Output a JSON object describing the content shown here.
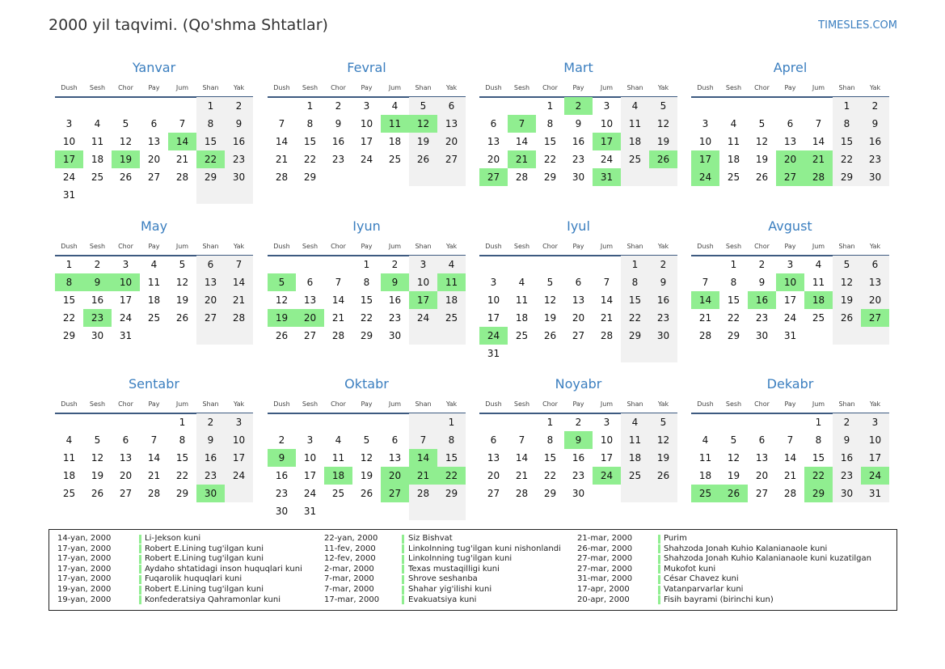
{
  "header": {
    "title": "2000 yil taqvimi. (Qo'shma Shtatlar)",
    "site": "TIMESLES.COM"
  },
  "weekdays": [
    "Dush",
    "Sesh",
    "Chor",
    "Pay",
    "Jum",
    "Shan",
    "Yak"
  ],
  "months": [
    {
      "name": "Yanvar",
      "weeks": [
        [
          null,
          null,
          null,
          null,
          null,
          1,
          2
        ],
        [
          3,
          4,
          5,
          6,
          7,
          8,
          9
        ],
        [
          10,
          11,
          12,
          13,
          14,
          15,
          16
        ],
        [
          17,
          18,
          19,
          20,
          21,
          22,
          23
        ],
        [
          24,
          25,
          26,
          27,
          28,
          29,
          30
        ],
        [
          31
        ]
      ],
      "holidays": [
        14,
        17,
        19,
        22
      ]
    },
    {
      "name": "Fevral",
      "weeks": [
        [
          null,
          1,
          2,
          3,
          4,
          5,
          6
        ],
        [
          7,
          8,
          9,
          10,
          11,
          12,
          13
        ],
        [
          14,
          15,
          16,
          17,
          18,
          19,
          20
        ],
        [
          21,
          22,
          23,
          24,
          25,
          26,
          27
        ],
        [
          28,
          29
        ]
      ],
      "holidays": [
        11,
        12
      ]
    },
    {
      "name": "Mart",
      "weeks": [
        [
          null,
          null,
          1,
          2,
          3,
          4,
          5
        ],
        [
          6,
          7,
          8,
          9,
          10,
          11,
          12
        ],
        [
          13,
          14,
          15,
          16,
          17,
          18,
          19
        ],
        [
          20,
          21,
          22,
          23,
          24,
          25,
          26
        ],
        [
          27,
          28,
          29,
          30,
          31
        ]
      ],
      "holidays": [
        2,
        7,
        17,
        21,
        26,
        27,
        31
      ]
    },
    {
      "name": "Aprel",
      "weeks": [
        [
          null,
          null,
          null,
          null,
          null,
          1,
          2
        ],
        [
          3,
          4,
          5,
          6,
          7,
          8,
          9
        ],
        [
          10,
          11,
          12,
          13,
          14,
          15,
          16
        ],
        [
          17,
          18,
          19,
          20,
          21,
          22,
          23
        ],
        [
          24,
          25,
          26,
          27,
          28,
          29,
          30
        ]
      ],
      "holidays": [
        17,
        20,
        21,
        24,
        27,
        28
      ]
    },
    {
      "name": "May",
      "weeks": [
        [
          1,
          2,
          3,
          4,
          5,
          6,
          7
        ],
        [
          8,
          9,
          10,
          11,
          12,
          13,
          14
        ],
        [
          15,
          16,
          17,
          18,
          19,
          20,
          21
        ],
        [
          22,
          23,
          24,
          25,
          26,
          27,
          28
        ],
        [
          29,
          30,
          31
        ]
      ],
      "holidays": [
        8,
        9,
        10,
        23
      ]
    },
    {
      "name": "Iyun",
      "weeks": [
        [
          null,
          null,
          null,
          1,
          2,
          3,
          4
        ],
        [
          5,
          6,
          7,
          8,
          9,
          10,
          11
        ],
        [
          12,
          13,
          14,
          15,
          16,
          17,
          18
        ],
        [
          19,
          20,
          21,
          22,
          23,
          24,
          25
        ],
        [
          26,
          27,
          28,
          29,
          30
        ]
      ],
      "holidays": [
        5,
        9,
        11,
        17,
        19,
        20
      ]
    },
    {
      "name": "Iyul",
      "weeks": [
        [
          null,
          null,
          null,
          null,
          null,
          1,
          2
        ],
        [
          3,
          4,
          5,
          6,
          7,
          8,
          9
        ],
        [
          10,
          11,
          12,
          13,
          14,
          15,
          16
        ],
        [
          17,
          18,
          19,
          20,
          21,
          22,
          23
        ],
        [
          24,
          25,
          26,
          27,
          28,
          29,
          30
        ],
        [
          31
        ]
      ],
      "holidays": [
        24
      ]
    },
    {
      "name": "Avgust",
      "weeks": [
        [
          null,
          1,
          2,
          3,
          4,
          5,
          6
        ],
        [
          7,
          8,
          9,
          10,
          11,
          12,
          13
        ],
        [
          14,
          15,
          16,
          17,
          18,
          19,
          20
        ],
        [
          21,
          22,
          23,
          24,
          25,
          26,
          27
        ],
        [
          28,
          29,
          30,
          31
        ]
      ],
      "holidays": [
        10,
        14,
        16,
        18,
        27
      ]
    },
    {
      "name": "Sentabr",
      "weeks": [
        [
          null,
          null,
          null,
          null,
          1,
          2,
          3
        ],
        [
          4,
          5,
          6,
          7,
          8,
          9,
          10
        ],
        [
          11,
          12,
          13,
          14,
          15,
          16,
          17
        ],
        [
          18,
          19,
          20,
          21,
          22,
          23,
          24
        ],
        [
          25,
          26,
          27,
          28,
          29,
          30
        ]
      ],
      "holidays": [
        30
      ]
    },
    {
      "name": "Oktabr",
      "weeks": [
        [
          null,
          null,
          null,
          null,
          null,
          null,
          1
        ],
        [
          2,
          3,
          4,
          5,
          6,
          7,
          8
        ],
        [
          9,
          10,
          11,
          12,
          13,
          14,
          15
        ],
        [
          16,
          17,
          18,
          19,
          20,
          21,
          22
        ],
        [
          23,
          24,
          25,
          26,
          27,
          28,
          29
        ],
        [
          30,
          31
        ]
      ],
      "holidays": [
        9,
        14,
        18,
        20,
        21,
        22,
        27
      ]
    },
    {
      "name": "Noyabr",
      "weeks": [
        [
          null,
          null,
          1,
          2,
          3,
          4,
          5
        ],
        [
          6,
          7,
          8,
          9,
          10,
          11,
          12
        ],
        [
          13,
          14,
          15,
          16,
          17,
          18,
          19
        ],
        [
          20,
          21,
          22,
          23,
          24,
          25,
          26
        ],
        [
          27,
          28,
          29,
          30
        ]
      ],
      "holidays": [
        9,
        24
      ]
    },
    {
      "name": "Dekabr",
      "weeks": [
        [
          null,
          null,
          null,
          null,
          1,
          2,
          3
        ],
        [
          4,
          5,
          6,
          7,
          8,
          9,
          10
        ],
        [
          11,
          12,
          13,
          14,
          15,
          16,
          17
        ],
        [
          18,
          19,
          20,
          21,
          22,
          23,
          24
        ],
        [
          25,
          26,
          27,
          28,
          29,
          30,
          31
        ]
      ],
      "holidays": [
        22,
        24,
        25,
        26,
        29
      ]
    }
  ],
  "holiday_list": [
    {
      "date": "14-yan, 2000",
      "name": "Li-Jekson kuni"
    },
    {
      "date": "17-yan, 2000",
      "name": "Robert E.Lining tug'ilgan kuni"
    },
    {
      "date": "17-yan, 2000",
      "name": "Robert E.Lining tug'ilgan kuni"
    },
    {
      "date": "17-yan, 2000",
      "name": "Aydaho shtatidagi inson huquqlari kuni"
    },
    {
      "date": "17-yan, 2000",
      "name": "Fuqarolik huquqlari kuni"
    },
    {
      "date": "19-yan, 2000",
      "name": "Robert E.Lining tug'ilgan kuni"
    },
    {
      "date": "19-yan, 2000",
      "name": "Konfederatsiya Qahramonlar kuni"
    },
    {
      "date": "22-yan, 2000",
      "name": "Siz Bishvat"
    },
    {
      "date": "11-fev, 2000",
      "name": "Linkolnning tug'ilgan kuni nishonlandi"
    },
    {
      "date": "12-fev, 2000",
      "name": "Linkolnning tug'ilgan kuni"
    },
    {
      "date": "2-mar, 2000",
      "name": "Texas mustaqilligi kuni"
    },
    {
      "date": "7-mar, 2000",
      "name": "Shrove seshanba"
    },
    {
      "date": "7-mar, 2000",
      "name": "Shahar yig'ilishi kuni"
    },
    {
      "date": "17-mar, 2000",
      "name": "Evakuatsiya kuni"
    },
    {
      "date": "21-mar, 2000",
      "name": "Purim"
    },
    {
      "date": "26-mar, 2000",
      "name": "Shahzoda Jonah Kuhio Kalanianaole kuni"
    },
    {
      "date": "27-mar, 2000",
      "name": "Shahzoda Jonah Kuhio Kalanianaole kuni kuzatilgan"
    },
    {
      "date": "27-mar, 2000",
      "name": "Mukofot kuni"
    },
    {
      "date": "31-mar, 2000",
      "name": "César Chavez kuni"
    },
    {
      "date": "17-apr, 2000",
      "name": "Vatanparvarlar kuni"
    },
    {
      "date": "20-apr, 2000",
      "name": "Fisih bayrami (birinchi kun)"
    }
  ]
}
